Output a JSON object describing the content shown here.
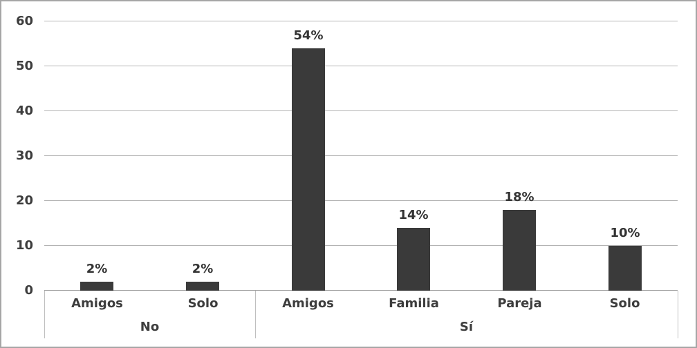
{
  "chart_data": {
    "type": "bar",
    "title": "",
    "xlabel": "",
    "ylabel": "",
    "ylim": [
      0,
      60
    ],
    "yticks": [
      0,
      10,
      20,
      30,
      40,
      50,
      60
    ],
    "grid": true,
    "legend": false,
    "axis_levels": [
      "category",
      "group"
    ],
    "groups": [
      {
        "label": "No",
        "categories": [
          "Amigos",
          "Solo"
        ],
        "values": [
          2,
          2
        ],
        "value_labels": [
          "2%",
          "2%"
        ]
      },
      {
        "label": "Sí",
        "categories": [
          "Amigos",
          "Familia",
          "Pareja",
          "Solo"
        ],
        "values": [
          54,
          14,
          18,
          10
        ],
        "value_labels": [
          "54%",
          "14%",
          "18%",
          "10%"
        ]
      }
    ],
    "colors": {
      "bar": "#3a3a3a",
      "gridline": "#b3b3b3",
      "axis_line": "#a0a0a0",
      "band_line": "#bfbfbf",
      "frame": "#a6a6a6",
      "text": "#3d3d3d",
      "background": "#ffffff"
    }
  }
}
